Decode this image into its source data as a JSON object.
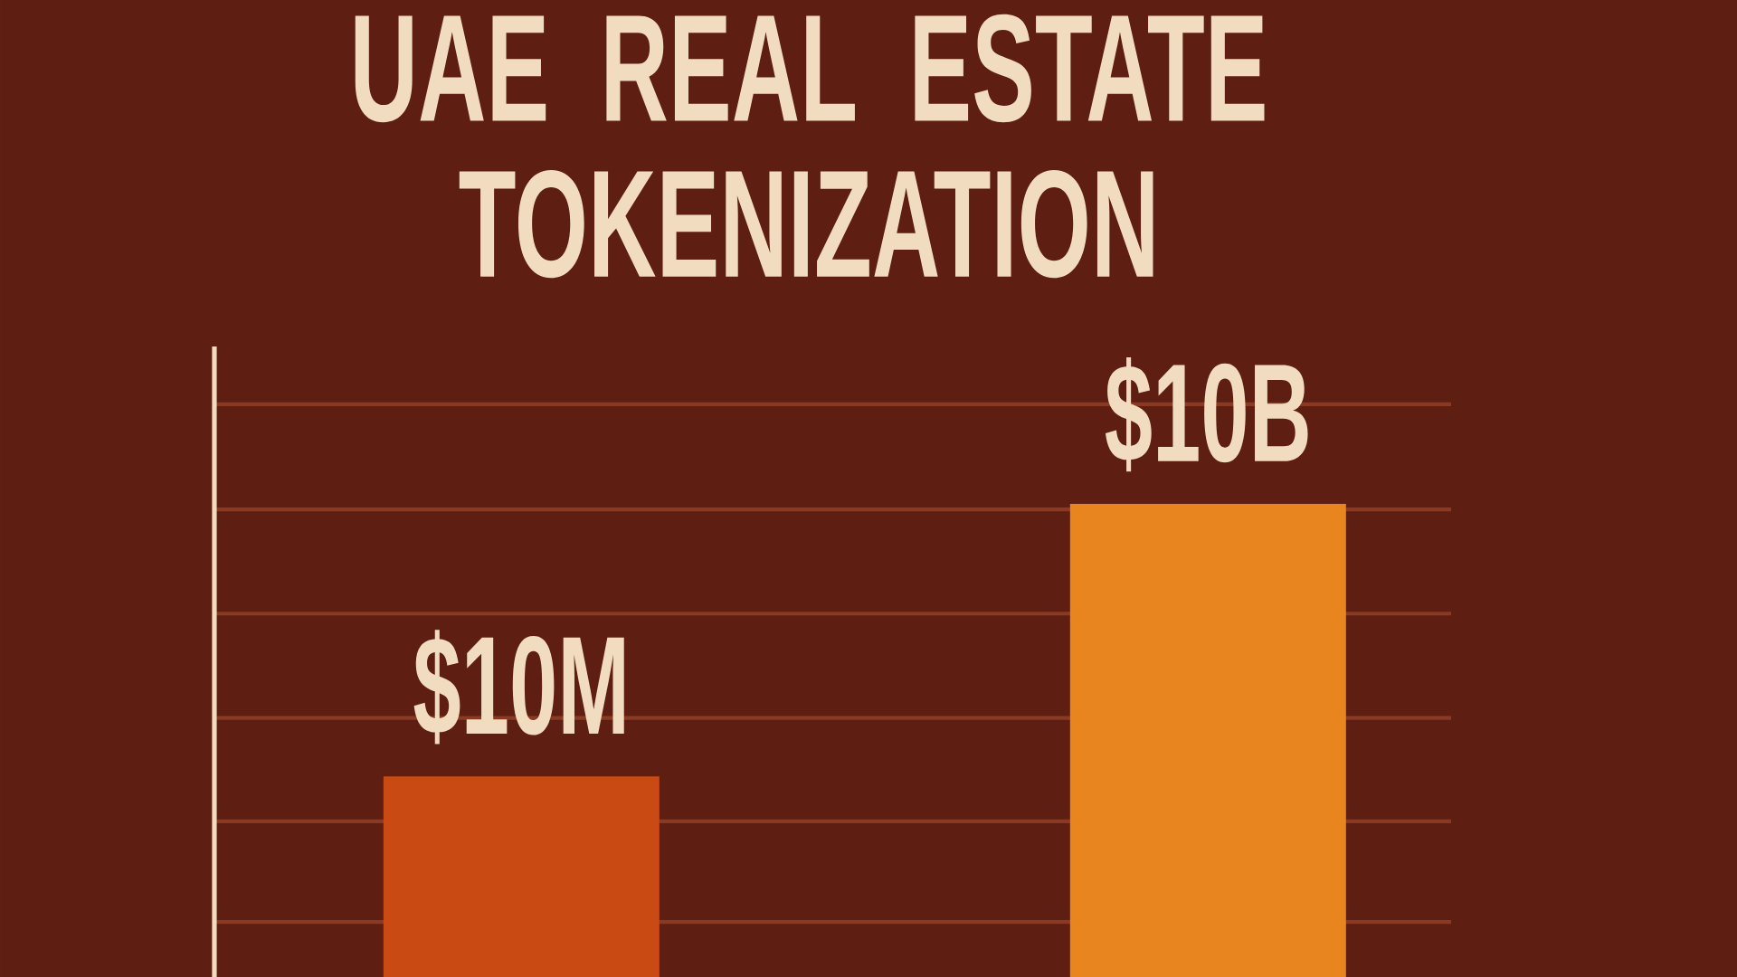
{
  "chart_data": {
    "type": "bar",
    "title": "UAE REAL ESTATE TOKENIZATION",
    "categories": [
      null,
      null
    ],
    "values": [
      10000000,
      10000000000
    ],
    "colors": [
      "#c94a12",
      "#e8851e"
    ],
    "value_labels": [
      "$10M",
      "$10B"
    ],
    "log": "y",
    "ylim": [
      62000,
      540000000000
    ],
    "yticks": [
      {
        "value": 250000,
        "label": null
      },
      {
        "value": 3200000,
        "label": null
      },
      {
        "value": 44000000,
        "label": null
      },
      {
        "value": 620000000,
        "label": null
      },
      {
        "value": 8700000000,
        "label": null
      },
      {
        "value": 125000000000,
        "label": null
      }
    ],
    "grid": "y"
  }
}
